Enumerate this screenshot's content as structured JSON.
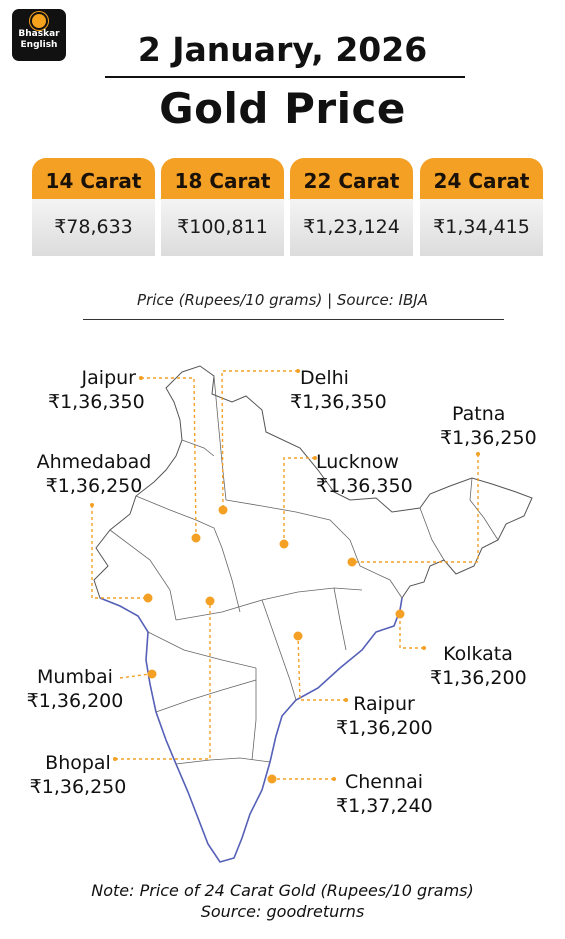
{
  "brand": {
    "line1": "Bhaskar",
    "line2": "English"
  },
  "date": "2 January, 2026",
  "title": "Gold Price",
  "prices": [
    {
      "label": "14 Carat",
      "value": "₹78,633"
    },
    {
      "label": "18 Carat",
      "value": "₹100,811"
    },
    {
      "label": "22 Carat",
      "value": "₹1,23,124"
    },
    {
      "label": "24 Carat",
      "value": "₹1,34,415"
    }
  ],
  "caption": "Price (Rupees/10 grams) | Source: IBJA",
  "cities": [
    {
      "name": "Jaipur",
      "price": "₹1,36,350"
    },
    {
      "name": "Delhi",
      "price": "₹1,36,350"
    },
    {
      "name": "Patna",
      "price": "₹1,36,250"
    },
    {
      "name": "Ahmedabad",
      "price": "₹1,36,250"
    },
    {
      "name": "Lucknow",
      "price": "₹1,36,350"
    },
    {
      "name": "Mumbai",
      "price": "₹1,36,200"
    },
    {
      "name": "Kolkata",
      "price": "₹1,36,200"
    },
    {
      "name": "Raipur",
      "price": "₹1,36,200"
    },
    {
      "name": "Bhopal",
      "price": "₹1,36,250"
    },
    {
      "name": "Chennai",
      "price": "₹1,37,240"
    }
  ],
  "note": {
    "line1": "Note: Price of 24 Carat Gold (Rupees/10 grams)",
    "line2": "Source: goodreturns"
  },
  "colors": {
    "accent": "#f3a024",
    "coast": "#5560b8",
    "border": "#555555"
  }
}
